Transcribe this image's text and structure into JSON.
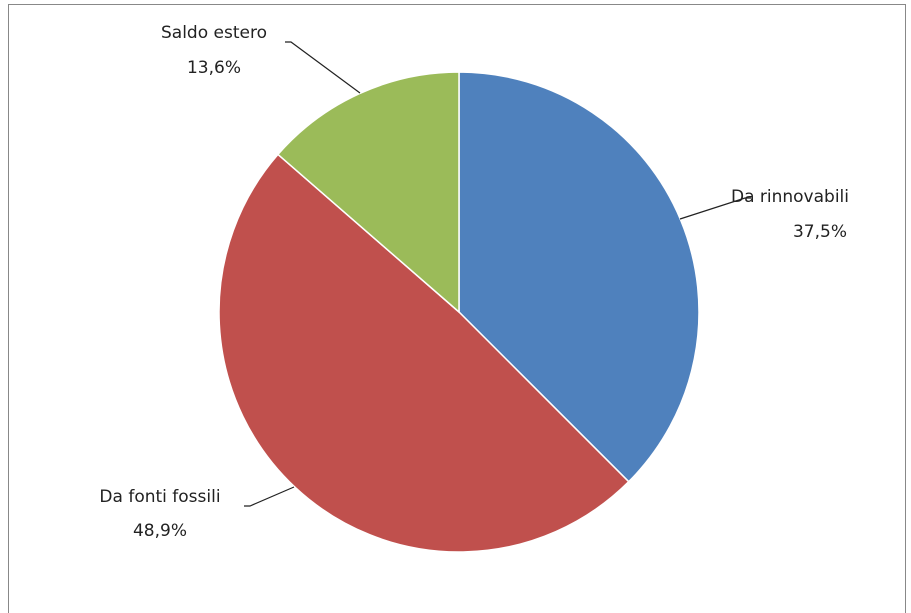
{
  "chart_data": {
    "type": "pie",
    "categories": [
      "Da rinnovabili",
      "Da fonti fossili",
      "Saldo estero"
    ],
    "values": [
      37.5,
      48.9,
      13.6
    ],
    "value_labels": [
      "37,5%",
      "48,9%",
      "13,6%"
    ],
    "colors": [
      "#4f81bd",
      "#c0504d",
      "#9bbb59"
    ]
  }
}
